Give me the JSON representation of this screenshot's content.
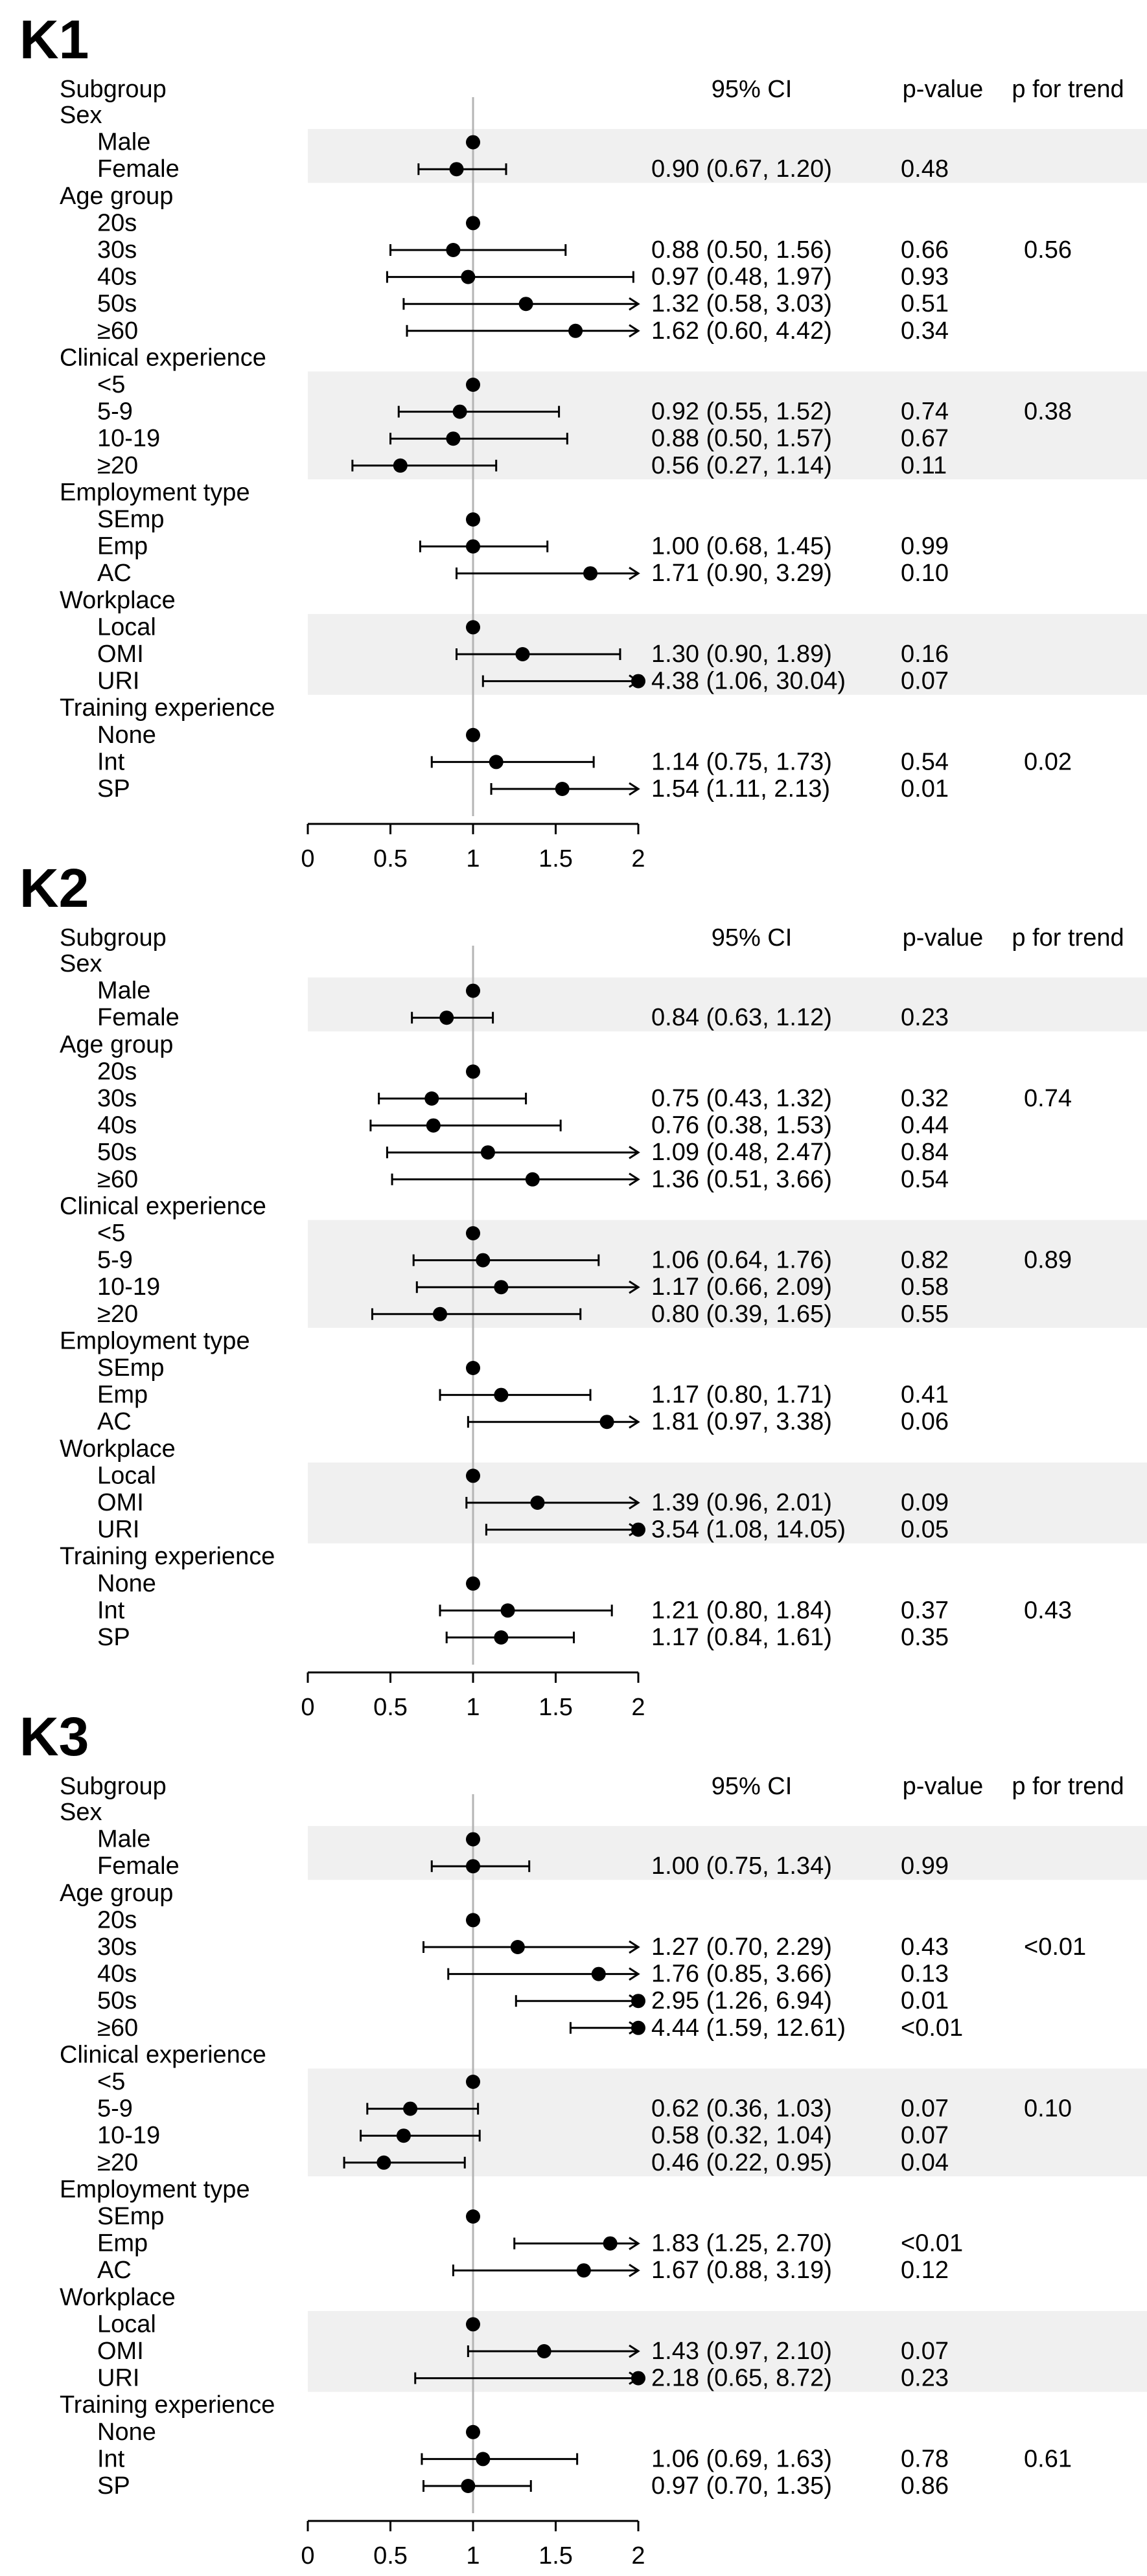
{
  "chart_data": [
    {
      "type": "forest",
      "title": "K1",
      "columns": {
        "ci": "95% CI",
        "p": "p-value",
        "trend": "p for trend",
        "subgroup": "Subgroup"
      },
      "xlim": [
        0,
        2
      ],
      "xticks": [
        "0",
        "0.5",
        "1",
        "1.5",
        "2"
      ],
      "reference_line": 1,
      "groups": [
        {
          "name": "Sex",
          "shaded": true,
          "trend": "",
          "rows": [
            {
              "label": "Male",
              "or": 1,
              "lo": null,
              "hi": null,
              "ci_text": "",
              "p": ""
            },
            {
              "label": "Female",
              "or": 0.9,
              "lo": 0.67,
              "hi": 1.2,
              "ci_text": "0.90 (0.67, 1.20)",
              "p": "0.48"
            }
          ]
        },
        {
          "name": "Age group",
          "shaded": false,
          "trend": "0.56",
          "rows": [
            {
              "label": "20s",
              "or": 1,
              "lo": null,
              "hi": null,
              "ci_text": "",
              "p": ""
            },
            {
              "label": "30s",
              "or": 0.88,
              "lo": 0.5,
              "hi": 1.56,
              "ci_text": "0.88 (0.50, 1.56)",
              "p": "0.66"
            },
            {
              "label": "40s",
              "or": 0.97,
              "lo": 0.48,
              "hi": 1.97,
              "ci_text": "0.97 (0.48, 1.97)",
              "p": "0.93"
            },
            {
              "label": "50s",
              "or": 1.32,
              "lo": 0.58,
              "hi": 3.03,
              "ci_text": "1.32 (0.58, 3.03)",
              "p": "0.51"
            },
            {
              "label": "≥60",
              "or": 1.62,
              "lo": 0.6,
              "hi": 4.42,
              "ci_text": "1.62 (0.60, 4.42)",
              "p": "0.34"
            }
          ]
        },
        {
          "name": "Clinical experience",
          "shaded": true,
          "trend": "0.38",
          "rows": [
            {
              "label": "<5",
              "or": 1,
              "lo": null,
              "hi": null,
              "ci_text": "",
              "p": ""
            },
            {
              "label": "5-9",
              "or": 0.92,
              "lo": 0.55,
              "hi": 1.52,
              "ci_text": "0.92 (0.55, 1.52)",
              "p": "0.74"
            },
            {
              "label": "10-19",
              "or": 0.88,
              "lo": 0.5,
              "hi": 1.57,
              "ci_text": "0.88 (0.50, 1.57)",
              "p": "0.67"
            },
            {
              "label": "≥20",
              "or": 0.56,
              "lo": 0.27,
              "hi": 1.14,
              "ci_text": "0.56 (0.27, 1.14)",
              "p": "0.11"
            }
          ]
        },
        {
          "name": "Employment type",
          "shaded": false,
          "trend": "",
          "rows": [
            {
              "label": "SEmp",
              "or": 1,
              "lo": null,
              "hi": null,
              "ci_text": "",
              "p": ""
            },
            {
              "label": "Emp",
              "or": 1.0,
              "lo": 0.68,
              "hi": 1.45,
              "ci_text": "1.00 (0.68, 1.45)",
              "p": "0.99"
            },
            {
              "label": "AC",
              "or": 1.71,
              "lo": 0.9,
              "hi": 3.29,
              "ci_text": "1.71 (0.90, 3.29)",
              "p": "0.10"
            }
          ]
        },
        {
          "name": "Workplace",
          "shaded": true,
          "trend": "",
          "rows": [
            {
              "label": "Local",
              "or": 1,
              "lo": null,
              "hi": null,
              "ci_text": "",
              "p": ""
            },
            {
              "label": "OMI",
              "or": 1.3,
              "lo": 0.9,
              "hi": 1.89,
              "ci_text": "1.30 (0.90, 1.89)",
              "p": "0.16"
            },
            {
              "label": "URI",
              "or": 4.38,
              "lo": 1.06,
              "hi": 30.04,
              "ci_text": "4.38 (1.06, 30.04)",
              "p": "0.07"
            }
          ]
        },
        {
          "name": "Training experience",
          "shaded": false,
          "trend": "0.02",
          "rows": [
            {
              "label": "None",
              "or": 1,
              "lo": null,
              "hi": null,
              "ci_text": "",
              "p": ""
            },
            {
              "label": "Int",
              "or": 1.14,
              "lo": 0.75,
              "hi": 1.73,
              "ci_text": "1.14 (0.75, 1.73)",
              "p": "0.54"
            },
            {
              "label": "SP",
              "or": 1.54,
              "lo": 1.11,
              "hi": 2.13,
              "ci_text": "1.54 (1.11, 2.13)",
              "p": "0.01"
            }
          ]
        }
      ]
    },
    {
      "type": "forest",
      "title": "K2",
      "columns": {
        "ci": "95% CI",
        "p": "p-value",
        "trend": "p for trend",
        "subgroup": "Subgroup"
      },
      "xlim": [
        0,
        2
      ],
      "xticks": [
        "0",
        "0.5",
        "1",
        "1.5",
        "2"
      ],
      "reference_line": 1,
      "groups": [
        {
          "name": "Sex",
          "shaded": true,
          "trend": "",
          "rows": [
            {
              "label": "Male",
              "or": 1,
              "lo": null,
              "hi": null,
              "ci_text": "",
              "p": ""
            },
            {
              "label": "Female",
              "or": 0.84,
              "lo": 0.63,
              "hi": 1.12,
              "ci_text": "0.84 (0.63, 1.12)",
              "p": "0.23"
            }
          ]
        },
        {
          "name": "Age group",
          "shaded": false,
          "trend": "0.74",
          "rows": [
            {
              "label": "20s",
              "or": 1,
              "lo": null,
              "hi": null,
              "ci_text": "",
              "p": ""
            },
            {
              "label": "30s",
              "or": 0.75,
              "lo": 0.43,
              "hi": 1.32,
              "ci_text": "0.75 (0.43, 1.32)",
              "p": "0.32"
            },
            {
              "label": "40s",
              "or": 0.76,
              "lo": 0.38,
              "hi": 1.53,
              "ci_text": "0.76 (0.38, 1.53)",
              "p": "0.44"
            },
            {
              "label": "50s",
              "or": 1.09,
              "lo": 0.48,
              "hi": 2.47,
              "ci_text": "1.09 (0.48, 2.47)",
              "p": "0.84"
            },
            {
              "label": "≥60",
              "or": 1.36,
              "lo": 0.51,
              "hi": 3.66,
              "ci_text": "1.36 (0.51, 3.66)",
              "p": "0.54"
            }
          ]
        },
        {
          "name": "Clinical experience",
          "shaded": true,
          "trend": "0.89",
          "rows": [
            {
              "label": "<5",
              "or": 1,
              "lo": null,
              "hi": null,
              "ci_text": "",
              "p": ""
            },
            {
              "label": "5-9",
              "or": 1.06,
              "lo": 0.64,
              "hi": 1.76,
              "ci_text": "1.06 (0.64, 1.76)",
              "p": "0.82"
            },
            {
              "label": "10-19",
              "or": 1.17,
              "lo": 0.66,
              "hi": 2.09,
              "ci_text": "1.17 (0.66, 2.09)",
              "p": "0.58"
            },
            {
              "label": "≥20",
              "or": 0.8,
              "lo": 0.39,
              "hi": 1.65,
              "ci_text": "0.80 (0.39, 1.65)",
              "p": "0.55"
            }
          ]
        },
        {
          "name": "Employment type",
          "shaded": false,
          "trend": "",
          "rows": [
            {
              "label": "SEmp",
              "or": 1,
              "lo": null,
              "hi": null,
              "ci_text": "",
              "p": ""
            },
            {
              "label": "Emp",
              "or": 1.17,
              "lo": 0.8,
              "hi": 1.71,
              "ci_text": "1.17 (0.80, 1.71)",
              "p": "0.41"
            },
            {
              "label": "AC",
              "or": 1.81,
              "lo": 0.97,
              "hi": 3.38,
              "ci_text": "1.81 (0.97, 3.38)",
              "p": "0.06"
            }
          ]
        },
        {
          "name": "Workplace",
          "shaded": true,
          "trend": "",
          "rows": [
            {
              "label": "Local",
              "or": 1,
              "lo": null,
              "hi": null,
              "ci_text": "",
              "p": ""
            },
            {
              "label": "OMI",
              "or": 1.39,
              "lo": 0.96,
              "hi": 2.01,
              "ci_text": "1.39 (0.96, 2.01)",
              "p": "0.09"
            },
            {
              "label": "URI",
              "or": 3.54,
              "lo": 1.08,
              "hi": 14.05,
              "ci_text": "3.54 (1.08, 14.05)",
              "p": "0.05"
            }
          ]
        },
        {
          "name": "Training experience",
          "shaded": false,
          "trend": "0.43",
          "rows": [
            {
              "label": "None",
              "or": 1,
              "lo": null,
              "hi": null,
              "ci_text": "",
              "p": ""
            },
            {
              "label": "Int",
              "or": 1.21,
              "lo": 0.8,
              "hi": 1.84,
              "ci_text": "1.21 (0.80, 1.84)",
              "p": "0.37"
            },
            {
              "label": "SP",
              "or": 1.17,
              "lo": 0.84,
              "hi": 1.61,
              "ci_text": "1.17 (0.84, 1.61)",
              "p": "0.35"
            }
          ]
        }
      ]
    },
    {
      "type": "forest",
      "title": "K3",
      "columns": {
        "ci": "95% CI",
        "p": "p-value",
        "trend": "p for trend",
        "subgroup": "Subgroup"
      },
      "xlim": [
        0,
        2
      ],
      "xticks": [
        "0",
        "0.5",
        "1",
        "1.5",
        "2"
      ],
      "reference_line": 1,
      "groups": [
        {
          "name": "Sex",
          "shaded": true,
          "trend": "",
          "rows": [
            {
              "label": "Male",
              "or": 1,
              "lo": null,
              "hi": null,
              "ci_text": "",
              "p": ""
            },
            {
              "label": "Female",
              "or": 1.0,
              "lo": 0.75,
              "hi": 1.34,
              "ci_text": "1.00 (0.75, 1.34)",
              "p": "0.99"
            }
          ]
        },
        {
          "name": "Age group",
          "shaded": false,
          "trend": "<0.01",
          "rows": [
            {
              "label": "20s",
              "or": 1,
              "lo": null,
              "hi": null,
              "ci_text": "",
              "p": ""
            },
            {
              "label": "30s",
              "or": 1.27,
              "lo": 0.7,
              "hi": 2.29,
              "ci_text": "1.27 (0.70, 2.29)",
              "p": "0.43"
            },
            {
              "label": "40s",
              "or": 1.76,
              "lo": 0.85,
              "hi": 3.66,
              "ci_text": "1.76 (0.85, 3.66)",
              "p": "0.13"
            },
            {
              "label": "50s",
              "or": 2.95,
              "lo": 1.26,
              "hi": 6.94,
              "ci_text": "2.95 (1.26, 6.94)",
              "p": "0.01"
            },
            {
              "label": "≥60",
              "or": 4.44,
              "lo": 1.59,
              "hi": 12.61,
              "ci_text": "4.44 (1.59, 12.61)",
              "p": "<0.01"
            }
          ]
        },
        {
          "name": "Clinical experience",
          "shaded": true,
          "trend": "0.10",
          "rows": [
            {
              "label": "<5",
              "or": 1,
              "lo": null,
              "hi": null,
              "ci_text": "",
              "p": ""
            },
            {
              "label": "5-9",
              "or": 0.62,
              "lo": 0.36,
              "hi": 1.03,
              "ci_text": "0.62 (0.36, 1.03)",
              "p": "0.07"
            },
            {
              "label": "10-19",
              "or": 0.58,
              "lo": 0.32,
              "hi": 1.04,
              "ci_text": "0.58 (0.32, 1.04)",
              "p": "0.07"
            },
            {
              "label": "≥20",
              "or": 0.46,
              "lo": 0.22,
              "hi": 0.95,
              "ci_text": "0.46 (0.22, 0.95)",
              "p": "0.04"
            }
          ]
        },
        {
          "name": "Employment type",
          "shaded": false,
          "trend": "",
          "rows": [
            {
              "label": "SEmp",
              "or": 1,
              "lo": null,
              "hi": null,
              "ci_text": "",
              "p": ""
            },
            {
              "label": "Emp",
              "or": 1.83,
              "lo": 1.25,
              "hi": 2.7,
              "ci_text": "1.83 (1.25, 2.70)",
              "p": "<0.01"
            },
            {
              "label": "AC",
              "or": 1.67,
              "lo": 0.88,
              "hi": 3.19,
              "ci_text": "1.67 (0.88, 3.19)",
              "p": "0.12"
            }
          ]
        },
        {
          "name": "Workplace",
          "shaded": true,
          "trend": "",
          "rows": [
            {
              "label": "Local",
              "or": 1,
              "lo": null,
              "hi": null,
              "ci_text": "",
              "p": ""
            },
            {
              "label": "OMI",
              "or": 1.43,
              "lo": 0.97,
              "hi": 2.1,
              "ci_text": "1.43 (0.97, 2.10)",
              "p": "0.07"
            },
            {
              "label": "URI",
              "or": 2.18,
              "lo": 0.65,
              "hi": 8.72,
              "ci_text": "2.18 (0.65, 8.72)",
              "p": "0.23"
            }
          ]
        },
        {
          "name": "Training experience",
          "shaded": false,
          "trend": "0.61",
          "rows": [
            {
              "label": "None",
              "or": 1,
              "lo": null,
              "hi": null,
              "ci_text": "",
              "p": ""
            },
            {
              "label": "Int",
              "or": 1.06,
              "lo": 0.69,
              "hi": 1.63,
              "ci_text": "1.06 (0.69, 1.63)",
              "p": "0.78"
            },
            {
              "label": "SP",
              "or": 0.97,
              "lo": 0.7,
              "hi": 1.35,
              "ci_text": "0.97 (0.70, 1.35)",
              "p": "0.86"
            }
          ]
        }
      ]
    }
  ]
}
